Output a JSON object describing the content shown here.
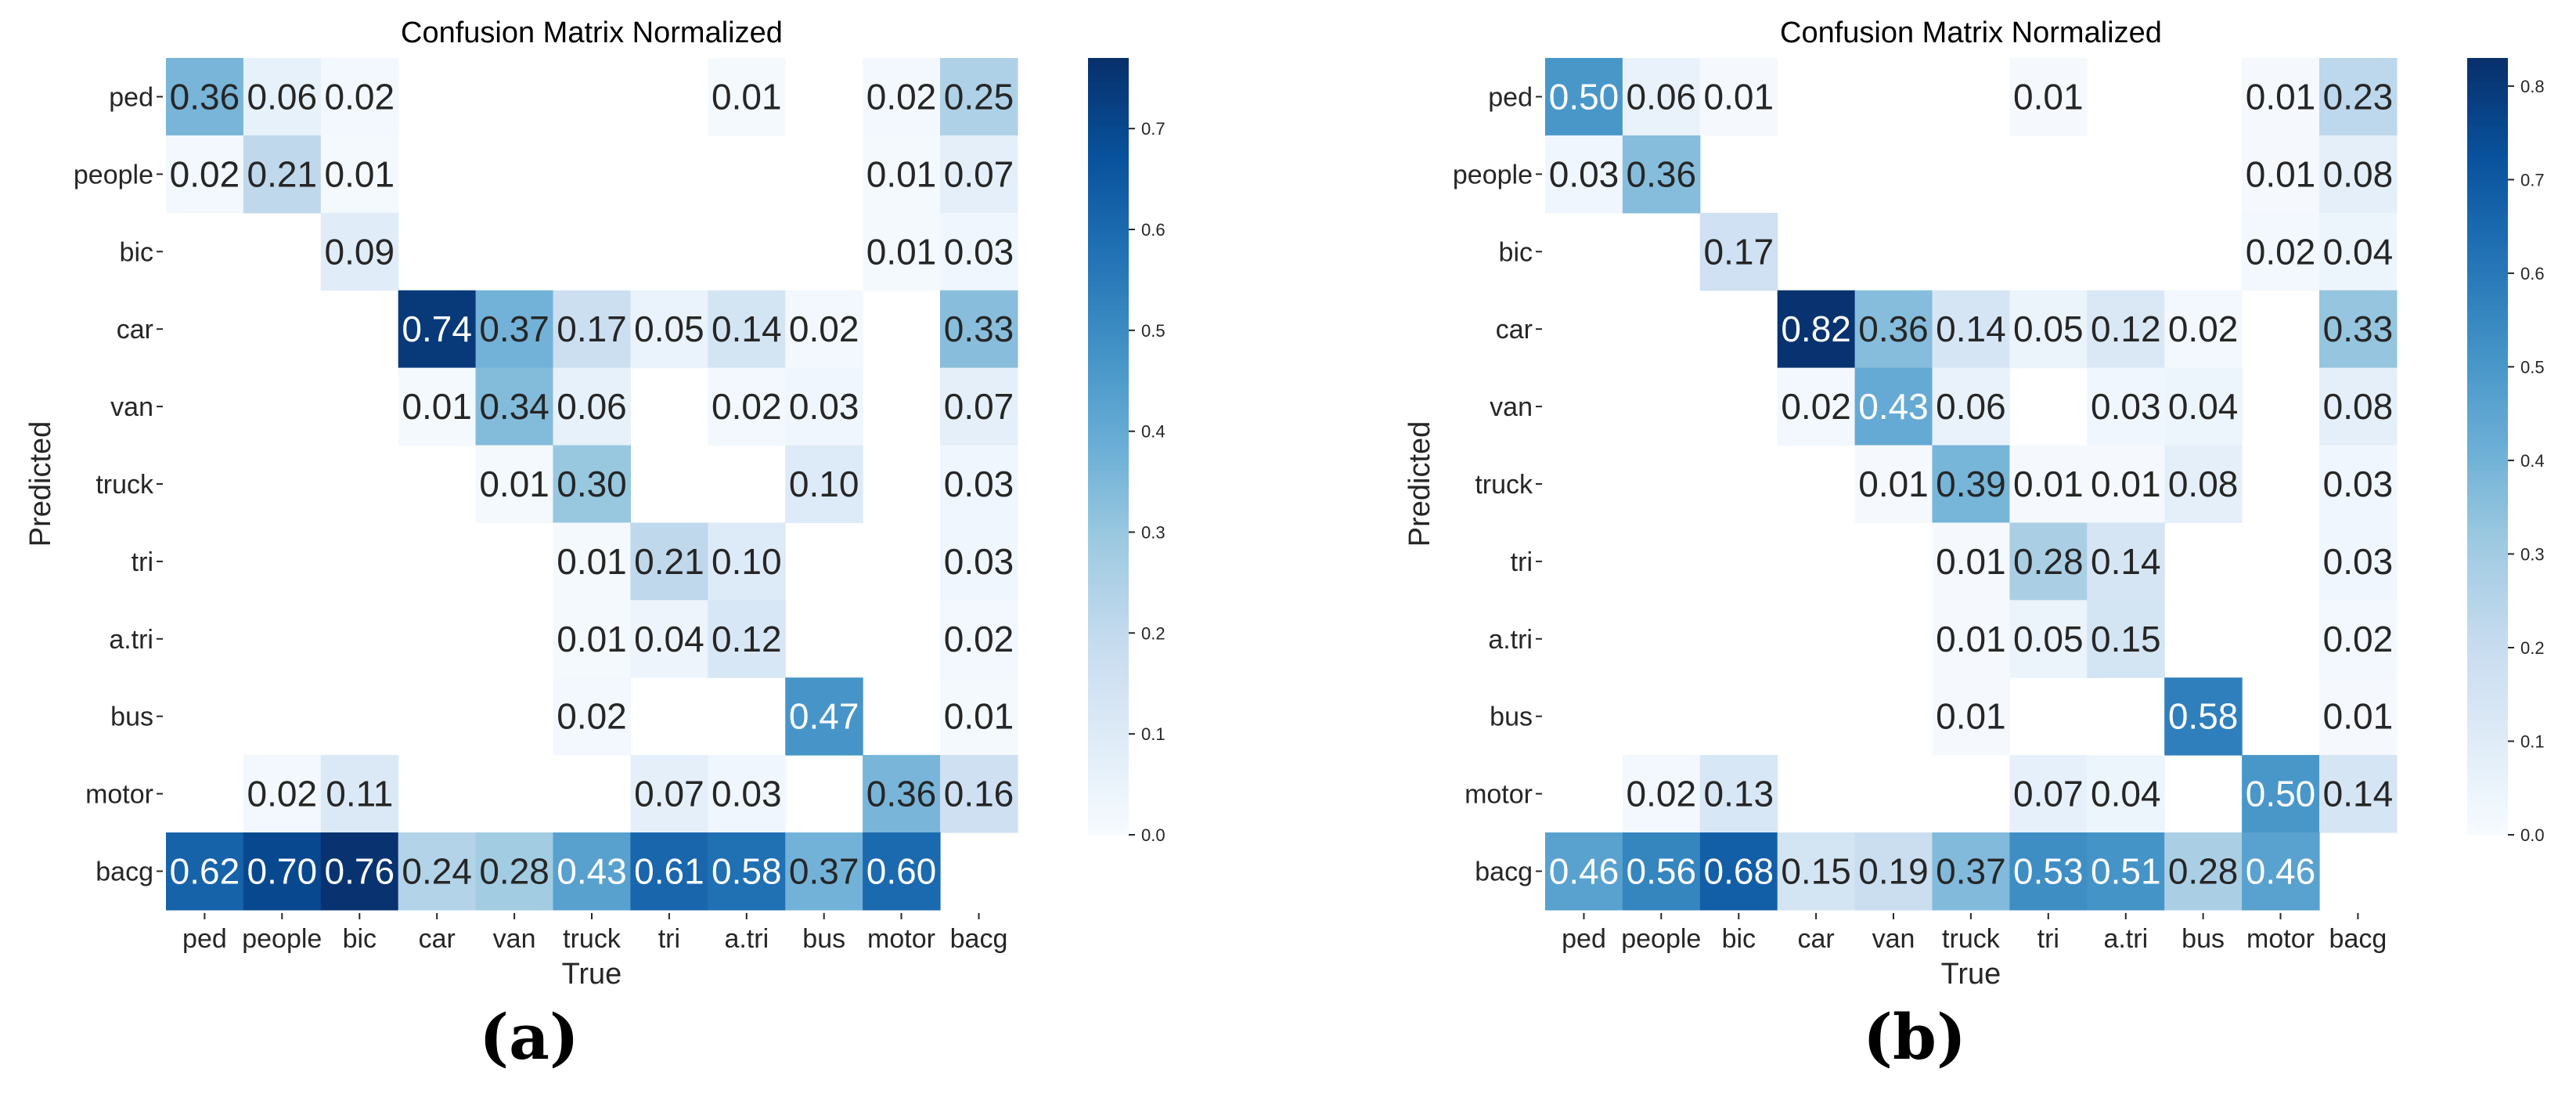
{
  "chart_data": [
    {
      "type": "heatmap",
      "title": "Confusion Matrix Normalized",
      "xlabel": "True",
      "ylabel": "Predicted",
      "caption": "(a)",
      "x_categories": [
        "ped",
        "people",
        "bic",
        "car",
        "van",
        "truck",
        "tri",
        "a.tri",
        "bus",
        "motor",
        "bacg"
      ],
      "y_categories": [
        "ped",
        "people",
        "bic",
        "car",
        "van",
        "truck",
        "tri",
        "a.tri",
        "bus",
        "motor",
        "bacg"
      ],
      "values": [
        [
          0.36,
          0.06,
          0.02,
          null,
          null,
          null,
          null,
          0.01,
          null,
          0.02,
          0.25
        ],
        [
          0.02,
          0.21,
          0.01,
          null,
          null,
          null,
          null,
          null,
          null,
          0.01,
          0.07
        ],
        [
          null,
          null,
          0.09,
          null,
          null,
          null,
          null,
          null,
          null,
          0.01,
          0.03
        ],
        [
          null,
          null,
          null,
          0.74,
          0.37,
          0.17,
          0.05,
          0.14,
          0.02,
          null,
          0.33
        ],
        [
          null,
          null,
          null,
          0.01,
          0.34,
          0.06,
          null,
          0.02,
          0.03,
          null,
          0.07
        ],
        [
          null,
          null,
          null,
          null,
          0.01,
          0.3,
          null,
          null,
          0.1,
          null,
          0.03
        ],
        [
          null,
          null,
          null,
          null,
          null,
          0.01,
          0.21,
          0.1,
          null,
          null,
          0.03
        ],
        [
          null,
          null,
          null,
          null,
          null,
          0.01,
          0.04,
          0.12,
          null,
          null,
          0.02
        ],
        [
          null,
          null,
          null,
          null,
          null,
          0.02,
          null,
          null,
          0.47,
          null,
          0.01
        ],
        [
          null,
          0.02,
          0.11,
          null,
          null,
          null,
          0.07,
          0.03,
          null,
          0.36,
          0.16
        ],
        [
          0.62,
          0.7,
          0.76,
          0.24,
          0.28,
          0.43,
          0.61,
          0.58,
          0.37,
          0.6,
          null
        ]
      ],
      "colorbar": {
        "range": [
          0.0,
          0.77
        ],
        "ticks": [
          0.0,
          0.1,
          0.2,
          0.3,
          0.4,
          0.5,
          0.6,
          0.7
        ],
        "tick_labels": [
          "0.0",
          "0.1",
          "0.2",
          "0.3",
          "0.4",
          "0.5",
          "0.6",
          "0.7"
        ]
      },
      "colormap": "Blues"
    },
    {
      "type": "heatmap",
      "title": "Confusion Matrix Normalized",
      "xlabel": "True",
      "ylabel": "Predicted",
      "caption": "(b)",
      "x_categories": [
        "ped",
        "people",
        "bic",
        "car",
        "van",
        "truck",
        "tri",
        "a.tri",
        "bus",
        "motor",
        "bacg"
      ],
      "y_categories": [
        "ped",
        "people",
        "bic",
        "car",
        "van",
        "truck",
        "tri",
        "a.tri",
        "bus",
        "motor",
        "bacg"
      ],
      "values": [
        [
          0.5,
          0.06,
          0.01,
          null,
          null,
          null,
          0.01,
          null,
          null,
          0.01,
          0.23
        ],
        [
          0.03,
          0.36,
          null,
          null,
          null,
          null,
          null,
          null,
          null,
          0.01,
          0.08
        ],
        [
          null,
          null,
          0.17,
          null,
          null,
          null,
          null,
          null,
          null,
          0.02,
          0.04
        ],
        [
          null,
          null,
          null,
          0.82,
          0.36,
          0.14,
          0.05,
          0.12,
          0.02,
          null,
          0.33
        ],
        [
          null,
          null,
          null,
          0.02,
          0.43,
          0.06,
          null,
          0.03,
          0.04,
          null,
          0.08
        ],
        [
          null,
          null,
          null,
          null,
          0.01,
          0.39,
          0.01,
          0.01,
          0.08,
          null,
          0.03
        ],
        [
          null,
          null,
          null,
          null,
          null,
          0.01,
          0.28,
          0.14,
          null,
          null,
          0.03
        ],
        [
          null,
          null,
          null,
          null,
          null,
          0.01,
          0.05,
          0.15,
          null,
          null,
          0.02
        ],
        [
          null,
          null,
          null,
          null,
          null,
          0.01,
          null,
          null,
          0.58,
          null,
          0.01
        ],
        [
          null,
          0.02,
          0.13,
          null,
          null,
          null,
          0.07,
          0.04,
          null,
          0.5,
          0.14
        ],
        [
          0.46,
          0.56,
          0.68,
          0.15,
          0.19,
          0.37,
          0.53,
          0.51,
          0.28,
          0.46,
          null
        ]
      ],
      "colorbar": {
        "range": [
          0.0,
          0.83
        ],
        "ticks": [
          0.0,
          0.1,
          0.2,
          0.3,
          0.4,
          0.5,
          0.6,
          0.7,
          0.8
        ],
        "tick_labels": [
          "0.0",
          "0.1",
          "0.2",
          "0.3",
          "0.4",
          "0.5",
          "0.6",
          "0.7",
          "0.8"
        ]
      },
      "colormap": "Blues"
    }
  ]
}
